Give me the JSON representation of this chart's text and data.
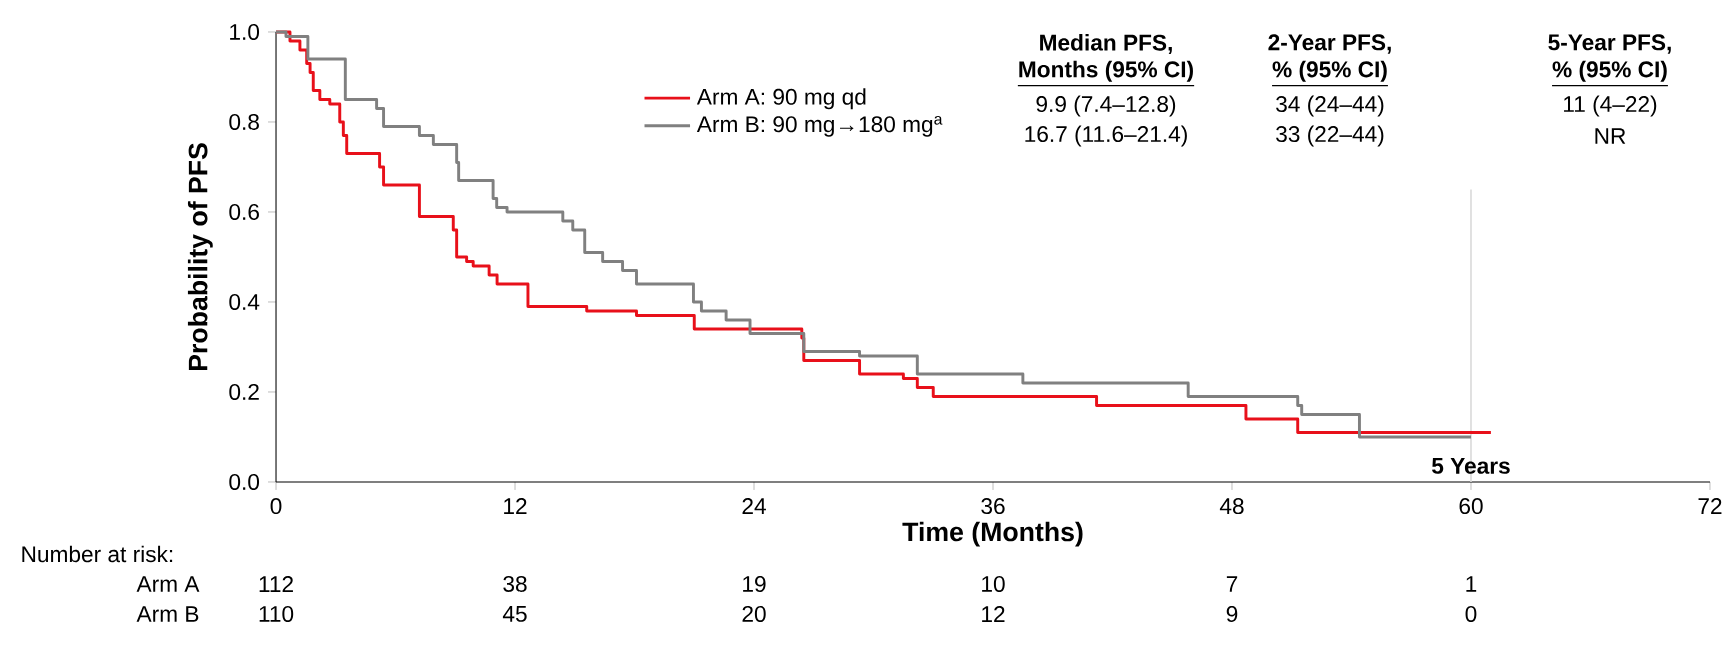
{
  "chart_data": {
    "type": "step",
    "xlabel": "Time (Months)",
    "ylabel": "Probability of PFS",
    "xlim": [
      0,
      72
    ],
    "xticks": [
      0,
      12,
      24,
      36,
      48,
      60,
      72
    ],
    "ylim": [
      0,
      1
    ],
    "yticks": [
      {
        "value": 0,
        "label": "0.0"
      },
      {
        "value": 0.2,
        "label": "0.2"
      },
      {
        "value": 0.4,
        "label": "0.4"
      },
      {
        "value": 0.6,
        "label": "0.6"
      },
      {
        "value": 0.8,
        "label": "0.8"
      },
      {
        "value": 1,
        "label": "1.0"
      }
    ],
    "legend": "top",
    "series": [
      {
        "name": "Arm A: 90 mg qd",
        "color": "#e8101a",
        "x": [
          0,
          0.7,
          1.2,
          1.54,
          1.71,
          1.87,
          2.2,
          2.7,
          3.2,
          3.38,
          3.55,
          5.2,
          5.4,
          7.2,
          8.9,
          9.07,
          9.57,
          9.9,
          10.7,
          11.1,
          12.65,
          15.6,
          18.1,
          21.0,
          26.4,
          26.5,
          29.3,
          31.5,
          32.2,
          33.0,
          41.2,
          48.7,
          51.3,
          61.0
        ],
        "values": [
          1.0,
          0.98,
          0.96,
          0.93,
          0.91,
          0.87,
          0.85,
          0.84,
          0.8,
          0.77,
          0.73,
          0.7,
          0.66,
          0.59,
          0.56,
          0.5,
          0.49,
          0.48,
          0.46,
          0.44,
          0.39,
          0.38,
          0.37,
          0.34,
          0.32,
          0.27,
          0.24,
          0.23,
          0.21,
          0.19,
          0.17,
          0.14,
          0.11,
          0.11
        ]
      },
      {
        "name": "Arm B: 90 mg→180 mg$^{a}$",
        "color": "#808080",
        "x": [
          0,
          0.5,
          1.6,
          3.48,
          5.05,
          5.4,
          7.2,
          7.9,
          9.07,
          9.17,
          10.9,
          11.08,
          11.6,
          14.4,
          14.9,
          15.5,
          16.4,
          17.4,
          18.1,
          20.96,
          21.36,
          22.6,
          23.8,
          26.5,
          29.3,
          32.2,
          37.5,
          45.8,
          51.3,
          51.5,
          54.4,
          60.0
        ],
        "values": [
          1.0,
          0.99,
          0.94,
          0.85,
          0.83,
          0.79,
          0.77,
          0.75,
          0.71,
          0.67,
          0.63,
          0.61,
          0.6,
          0.58,
          0.56,
          0.51,
          0.49,
          0.47,
          0.44,
          0.4,
          0.38,
          0.36,
          0.33,
          0.29,
          0.28,
          0.24,
          0.22,
          0.19,
          0.17,
          0.15,
          0.1,
          0.1
        ]
      }
    ],
    "ref_lines": [
      {
        "axis": "x",
        "value": 60,
        "label": "5 Years",
        "color": "#d9d9d9"
      }
    ],
    "annotations": [
      "Median PFS,",
      "Months (95% CI)",
      "2-Year PFS,",
      "% (95% CI)",
      "5-Year PFS,",
      "% (95% CI)",
      "9.9   (7.4–12.8)",
      "34 (24–44)",
      "11 (4–22)",
      "16.7 (11.6–21.4)",
      "33 (22–44)",
      "NR",
      "Number at risk:",
      "Arm A",
      "Arm B",
      "112",
      "38",
      "19",
      "10",
      "7",
      "1",
      "110",
      "45",
      "20",
      "12",
      "9",
      "0"
    ]
  }
}
